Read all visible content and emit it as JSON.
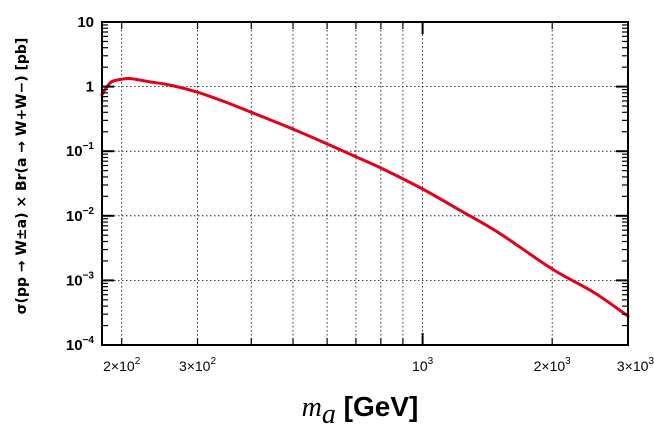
{
  "chart_data": {
    "type": "line",
    "title": "",
    "xlabel": {
      "symbol": "m",
      "subscript": "a",
      "unit": "[GeV]"
    },
    "ylabel": "σ(pp → W±a) × Br(a → W+W−) [pb]",
    "x_scale": "log",
    "y_scale": "log",
    "xlim": [
      180,
      3000
    ],
    "ylim": [
      0.0001,
      10
    ],
    "grid": true,
    "x_ticks": [
      {
        "value": 200,
        "label": "2×10",
        "exp": "2"
      },
      {
        "value": 300,
        "label": "3×10",
        "exp": "2"
      },
      {
        "value": 1000,
        "label": "10",
        "exp": "3"
      },
      {
        "value": 2000,
        "label": "2×10",
        "exp": "3"
      },
      {
        "value": 3000,
        "label": "3×10",
        "exp": "3"
      }
    ],
    "y_ticks": [
      {
        "value": 10,
        "label": "10",
        "exp": ""
      },
      {
        "value": 1,
        "label": "1",
        "exp": ""
      },
      {
        "value": 0.1,
        "label": "10",
        "exp": "−1"
      },
      {
        "value": 0.01,
        "label": "10",
        "exp": "−2"
      },
      {
        "value": 0.001,
        "label": "10",
        "exp": "−3"
      },
      {
        "value": 0.0001,
        "label": "10",
        "exp": "−4"
      }
    ],
    "series": [
      {
        "color": "#e3001b",
        "x": [
          180,
          185,
          190,
          200,
          210,
          230,
          260,
          300,
          350,
          400,
          500,
          600,
          700,
          800,
          1000,
          1200,
          1500,
          2000,
          2500,
          3000
        ],
        "y": [
          0.75,
          1.0,
          1.2,
          1.3,
          1.33,
          1.2,
          1.05,
          0.82,
          0.57,
          0.4,
          0.22,
          0.13,
          0.082,
          0.055,
          0.026,
          0.013,
          0.0055,
          0.0015,
          0.00065,
          0.00028
        ]
      }
    ]
  }
}
